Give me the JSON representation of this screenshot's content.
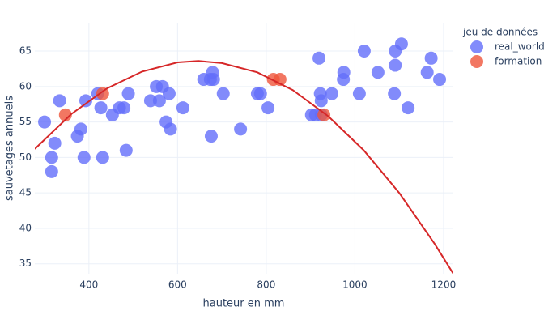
{
  "chart_data": {
    "type": "scatter",
    "x_label": "hauteur en mm",
    "y_label": "sauvetages annuels",
    "legend_title": "jeu de données",
    "xlim": [
      278,
      1222
    ],
    "ylim": [
      33.6,
      69
    ],
    "xticks": [
      400,
      600,
      800,
      1000,
      1200
    ],
    "yticks": [
      35,
      40,
      45,
      50,
      55,
      60,
      65
    ],
    "grid": true,
    "series": [
      {
        "name": "real_world",
        "color": "#636efa",
        "x": [
          300,
          316,
          316,
          323,
          334,
          374,
          382,
          389,
          393,
          420,
          427,
          431,
          453,
          469,
          479,
          484,
          489,
          539,
          552,
          559,
          566,
          574,
          581,
          584,
          612,
          659,
          674,
          676,
          679,
          681,
          703,
          742,
          780,
          787,
          804,
          902,
          911,
          919,
          924,
          922,
          924,
          948,
          974,
          975,
          1010,
          1021,
          1052,
          1089,
          1091,
          1091,
          1105,
          1120,
          1163,
          1172,
          1191
        ],
        "values": [
          55,
          50,
          48,
          52,
          58,
          53,
          54,
          50,
          58,
          59,
          57,
          50,
          56,
          57,
          57,
          51,
          59,
          58,
          60,
          58,
          60,
          55,
          59,
          54,
          57,
          61,
          61,
          53,
          62,
          61,
          59,
          54,
          59,
          59,
          57,
          56,
          56,
          64,
          56,
          59,
          58,
          59,
          61,
          62,
          59,
          65,
          62,
          59,
          63,
          65,
          66,
          57,
          62,
          64,
          61
        ]
      },
      {
        "name": "formation",
        "color": "#ef553b",
        "x": [
          347,
          431,
          816,
          831,
          930
        ],
        "values": [
          56,
          59,
          61,
          61,
          56
        ]
      }
    ],
    "trendline": {
      "color": "#d62728",
      "x": [
        278,
        360,
        440,
        520,
        600,
        647,
        700,
        780,
        860,
        940,
        1020,
        1100,
        1180,
        1222
      ],
      "values": [
        51.2,
        56.1,
        59.7,
        62.1,
        63.4,
        63.6,
        63.3,
        62.0,
        59.5,
        55.8,
        51.0,
        45.0,
        37.8,
        33.6
      ]
    }
  }
}
